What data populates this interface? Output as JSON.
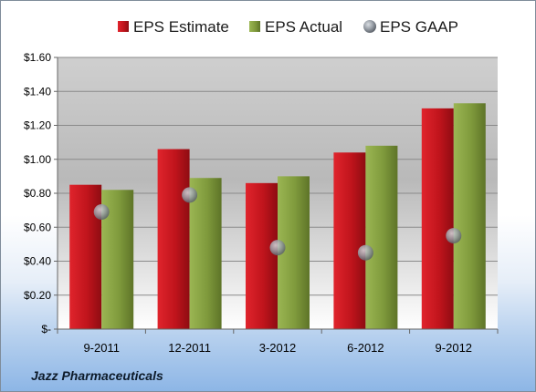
{
  "company": "Jazz Pharmaceuticals",
  "colors": {
    "estimate": "#c0141c",
    "actual": "#7f9a3c",
    "gaap": "#8a8f96"
  },
  "chart_data": {
    "type": "bar",
    "categories": [
      "9-2011",
      "12-2011",
      "3-2012",
      "6-2012",
      "9-2012"
    ],
    "series": [
      {
        "name": "EPS Estimate",
        "values": [
          0.85,
          1.06,
          0.86,
          1.04,
          1.3
        ]
      },
      {
        "name": "EPS Actual",
        "values": [
          0.82,
          0.89,
          0.9,
          1.08,
          1.33
        ]
      },
      {
        "name": "EPS GAAP",
        "values": [
          0.69,
          0.79,
          0.48,
          0.45,
          0.55
        ],
        "marker": "circle"
      }
    ],
    "ylim": [
      0,
      1.6
    ],
    "yticks": [
      "$-",
      "$0.20",
      "$0.40",
      "$0.60",
      "$0.80",
      "$1.00",
      "$1.20",
      "$1.40",
      "$1.60"
    ],
    "grid": true,
    "legend": "top"
  }
}
